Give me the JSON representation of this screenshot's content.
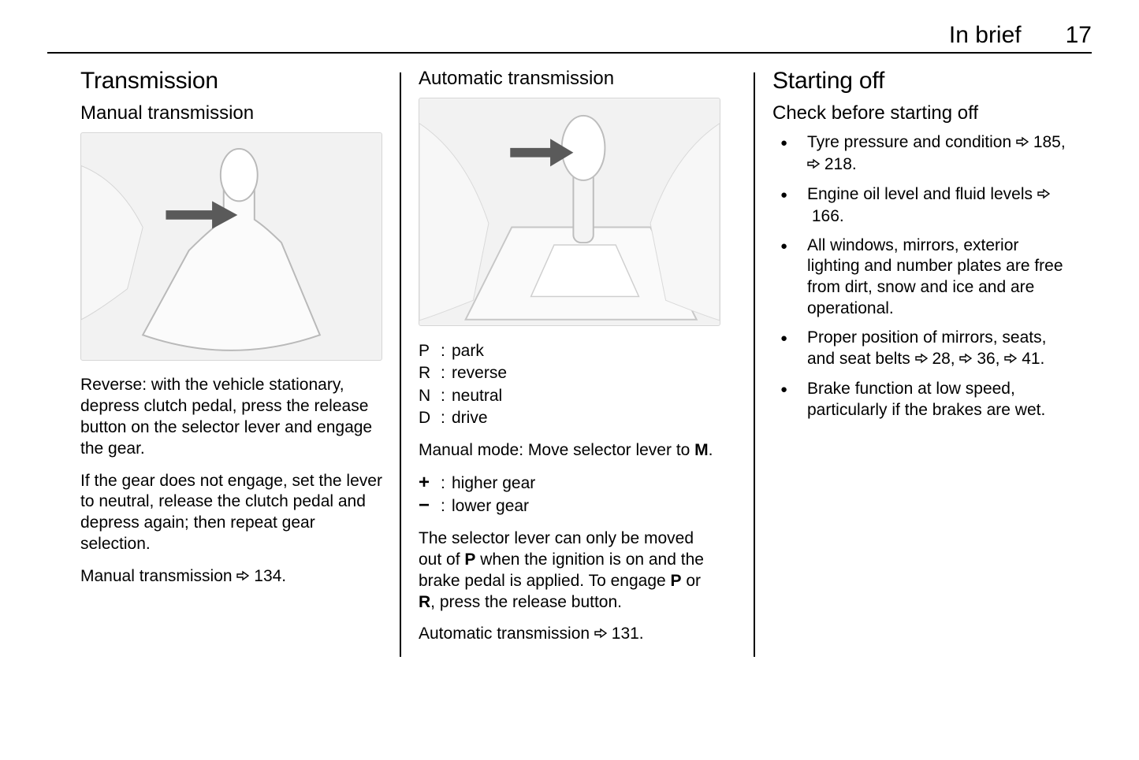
{
  "ref_glyph": "⇨",
  "header": {
    "section": "In brief",
    "page": "17"
  },
  "col1": {
    "h1": "Transmission",
    "h2": "Manual transmission",
    "fig_bg": "#f2f2f2",
    "fig_stroke": "#b9b9b9",
    "arrow_fill": "#5a5a5a",
    "p1": "Reverse: with the vehicle stationary, depress clutch pedal, press the release button on the selector lever and engage the gear.",
    "p2": "If the gear does not engage, set the lever to neutral, release the clutch pedal and depress again; then repeat gear selection.",
    "p3_pre": "Manual transmission ",
    "p3_ref": "134.",
    "p3_post": ""
  },
  "col2": {
    "h2": "Automatic transmission",
    "fig_bg": "#f2f2f2",
    "fig_stroke": "#b9b9b9",
    "arrow_fill": "#5a5a5a",
    "defs1": [
      {
        "k": "P",
        "v": "park"
      },
      {
        "k": "R",
        "v": "reverse"
      },
      {
        "k": "N",
        "v": "neutral"
      },
      {
        "k": "D",
        "v": "drive"
      }
    ],
    "p1_pre": "Manual mode: Move selector lever to ",
    "p1_bold": "M",
    "p1_post": ".",
    "defs2": [
      {
        "k": "+",
        "v": "higher gear"
      },
      {
        "k": "−",
        "v": "lower gear"
      }
    ],
    "p2_a": "The selector lever can only be moved out of ",
    "p2_b": "P",
    "p2_c": " when the ignition is on and the brake pedal is applied. To engage ",
    "p2_d": "P",
    "p2_e": " or ",
    "p2_f": "R",
    "p2_g": ", press the release button.",
    "p3_pre": "Automatic transmission ",
    "p3_ref": "131."
  },
  "col3": {
    "h1": "Starting off",
    "h2": "Check before starting off",
    "items": [
      {
        "pre": "Tyre pressure and condition ",
        "refs": [
          "185",
          "218"
        ],
        "post": "."
      },
      {
        "pre": "Engine oil level and fluid levels ",
        "refs": [
          "166"
        ],
        "post": "."
      },
      {
        "pre": "All windows, mirrors, exterior lighting and number plates are free from dirt, snow and ice and are operational.",
        "refs": [],
        "post": ""
      },
      {
        "pre": "Proper position of mirrors, seats, and seat belts ",
        "refs": [
          "28",
          "36",
          "41"
        ],
        "post": "."
      },
      {
        "pre": "Brake function at low speed, particularly if the brakes are wet.",
        "refs": [],
        "post": ""
      }
    ]
  }
}
